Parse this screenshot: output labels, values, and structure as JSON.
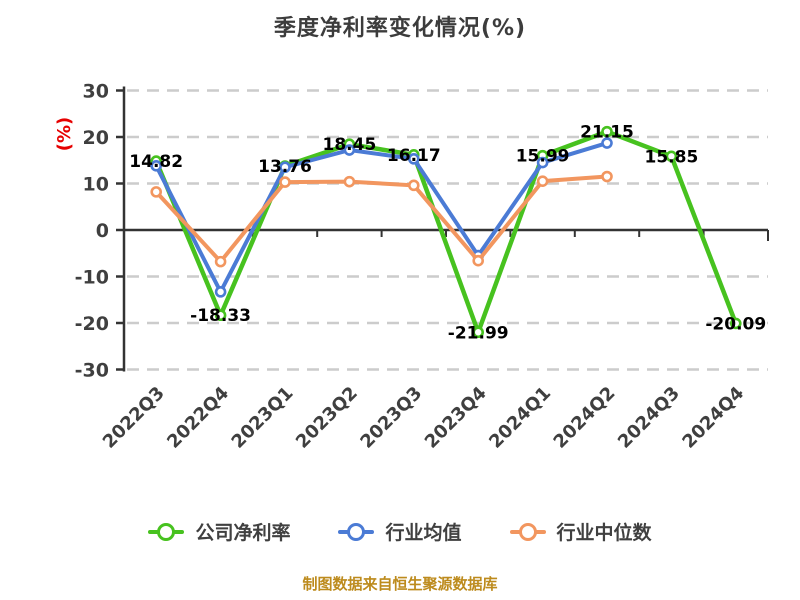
{
  "chart_data": {
    "type": "line",
    "title": "季度净利率变化情况(%)",
    "y_axis_name": "(%)",
    "ylabel": "(%)",
    "xlabel": "",
    "ylim": [
      -30,
      30
    ],
    "y_ticks": [
      30,
      20,
      10,
      0,
      -10,
      -20,
      -30
    ],
    "grid": "dashed-horizontal",
    "legend_position": "bottom",
    "categories": [
      "2022Q3",
      "2022Q4",
      "2023Q1",
      "2023Q2",
      "2023Q3",
      "2023Q4",
      "2024Q1",
      "2024Q2",
      "2024Q3",
      "2024Q4"
    ],
    "series": [
      {
        "id": "company-net-margin",
        "name": "公司净利率",
        "color": "#47c21f",
        "show_labels": true,
        "values": [
          14.82,
          -18.33,
          13.76,
          18.45,
          16.17,
          -21.99,
          15.99,
          21.15,
          15.85,
          -20.09
        ],
        "labels": [
          "14.82",
          "-18.33",
          "13.76",
          "18.45",
          "16.17",
          "-21.99",
          "15.99",
          "21.15",
          "15.85",
          "-20.09"
        ]
      },
      {
        "id": "industry-mean",
        "name": "行业均值",
        "color": "#4b7bd5",
        "show_labels": false,
        "values": [
          13.8,
          -13.3,
          13.5,
          17.2,
          15.3,
          -5.5,
          14.5,
          18.7,
          null,
          null
        ],
        "labels": []
      },
      {
        "id": "industry-median",
        "name": "行业中位数",
        "color": "#f2965f",
        "show_labels": false,
        "values": [
          8.2,
          -6.8,
          10.3,
          10.4,
          9.6,
          -6.6,
          10.5,
          11.5,
          null,
          null
        ],
        "labels": []
      }
    ],
    "footer": "制图数据来自恒生聚源数据库",
    "colors": {
      "axis": "#333333",
      "grid": "#cccccc",
      "data_label": "#000000",
      "tick_text": "#3f3f3f",
      "axis_name": "#e60000",
      "title": "#3c3c3c",
      "footer": "#bd8b1d",
      "marker_fill": "#ffffff",
      "background": "#ffffff"
    }
  }
}
